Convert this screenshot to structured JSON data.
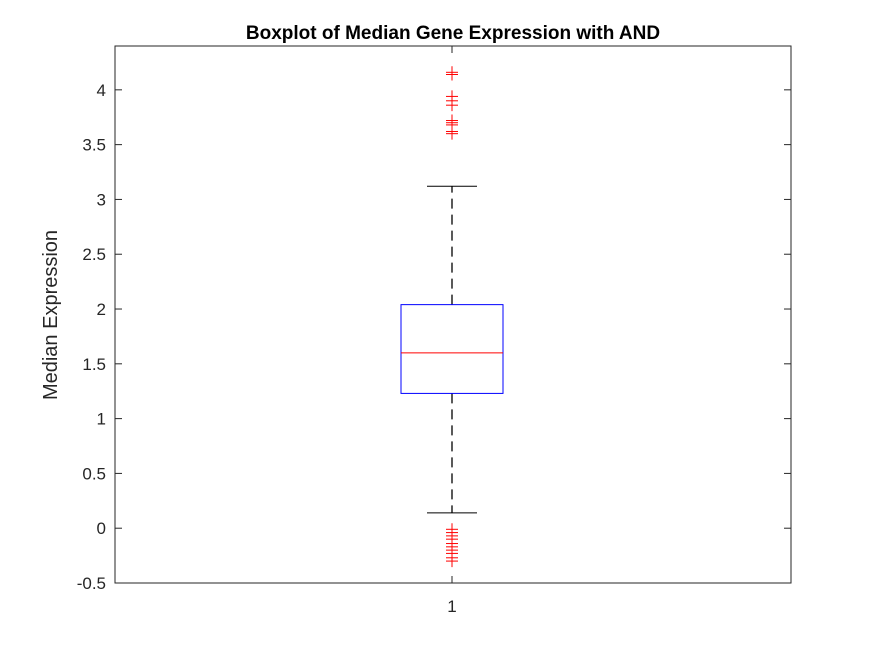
{
  "chart_data": {
    "type": "boxplot",
    "title": "Boxplot of Median Gene Expression with AND",
    "xlabel": "",
    "ylabel": "Median Expression",
    "categories": [
      "1"
    ],
    "ylim": [
      -0.5,
      4.4
    ],
    "yticks": [
      -0.5,
      0,
      0.5,
      1,
      1.5,
      2,
      2.5,
      3,
      3.5,
      4
    ],
    "ytick_labels": [
      "-0.5",
      "0",
      "0.5",
      "1",
      "1.5",
      "2",
      "2.5",
      "3",
      "3.5",
      "4"
    ],
    "xtick_labels": [
      "1"
    ],
    "grid": false,
    "box": {
      "q1": 1.23,
      "median": 1.6,
      "q3": 2.04,
      "whisker_low": 0.14,
      "whisker_high": 3.12
    },
    "outliers": [
      4.16,
      4.14,
      3.94,
      3.9,
      3.86,
      3.72,
      3.7,
      3.68,
      3.62,
      3.6,
      -0.01,
      -0.04,
      -0.07,
      -0.1,
      -0.14,
      -0.17,
      -0.2,
      -0.23,
      -0.27,
      -0.3
    ],
    "colors": {
      "box": "#0000ff",
      "median": "#ff0000",
      "whisker": "#000000",
      "outlier": "#ff0000",
      "axis": "#262626"
    }
  }
}
